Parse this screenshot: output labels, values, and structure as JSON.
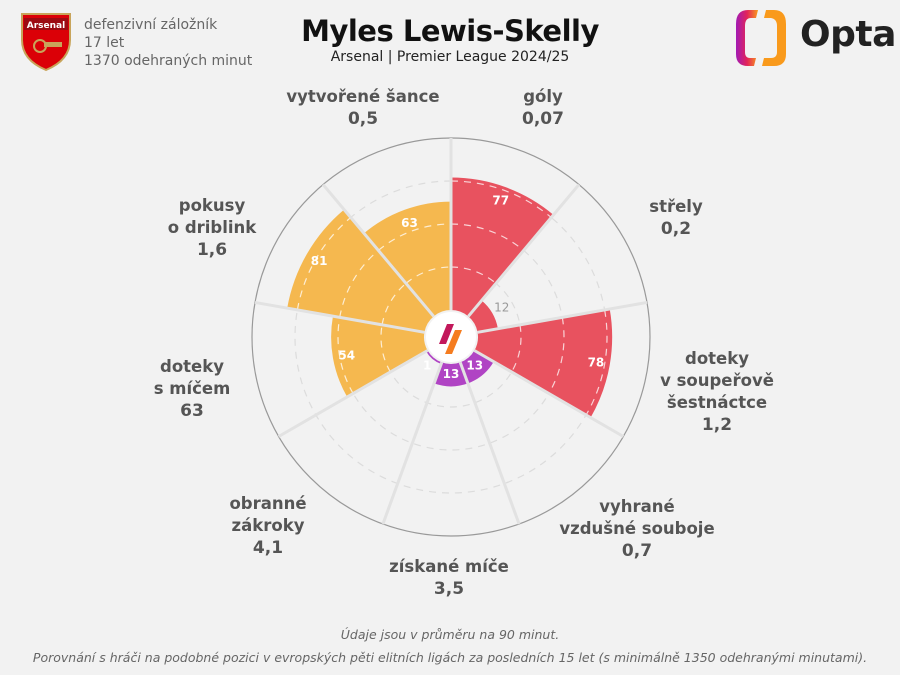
{
  "header": {
    "club_badge_text": "Arsenal",
    "position": "defenzivní záložník",
    "age": "17 let",
    "minutes": "1370 odehraných minut",
    "logo_text": "Opta"
  },
  "colors": {
    "attack": "#e8525f",
    "defense": "#b044c4",
    "possession": "#f5b84f",
    "background": "#f2f2f2"
  },
  "chart_data": {
    "type": "pie",
    "subtype": "pizza-percentile",
    "title": "Myles Lewis-Skelly",
    "subtitle": "Arsenal | Premier League 2024/25",
    "range": [
      0,
      100
    ],
    "gridlines": [
      25,
      50,
      75
    ],
    "slices": [
      {
        "label_lines": [
          "góly"
        ],
        "stat": "0,07",
        "percentile": 77,
        "group": "attack"
      },
      {
        "label_lines": [
          "střely"
        ],
        "stat": "0,2",
        "percentile": 12,
        "group": "attack"
      },
      {
        "label_lines": [
          "doteky",
          "v soupeřově",
          "šestnáctce"
        ],
        "stat": "1,2",
        "percentile": 78,
        "group": "attack"
      },
      {
        "label_lines": [
          "vyhrané",
          "vzdušné souboje"
        ],
        "stat": "0,7",
        "percentile": 13,
        "group": "defense"
      },
      {
        "label_lines": [
          "získané míče"
        ],
        "stat": "3,5",
        "percentile": 13,
        "group": "defense"
      },
      {
        "label_lines": [
          "obranné",
          "zákroky"
        ],
        "stat": "4,1",
        "percentile": 1,
        "group": "defense"
      },
      {
        "label_lines": [
          "doteky",
          "s míčem"
        ],
        "stat": "63",
        "percentile": 54,
        "group": "possession"
      },
      {
        "label_lines": [
          "pokusy",
          "o driblink"
        ],
        "stat": "1,6",
        "percentile": 81,
        "group": "possession"
      },
      {
        "label_lines": [
          "vytvořené šance"
        ],
        "stat": "0,5",
        "percentile": 63,
        "group": "possession"
      }
    ]
  },
  "footer": {
    "note1": "Údaje jsou v průměru na 90 minut.",
    "note2": "Porovnání s hráči na podobné pozici v evropských pěti elitních ligách za posledních 15 let (s minimálně 1350 odehranými minutami)."
  }
}
